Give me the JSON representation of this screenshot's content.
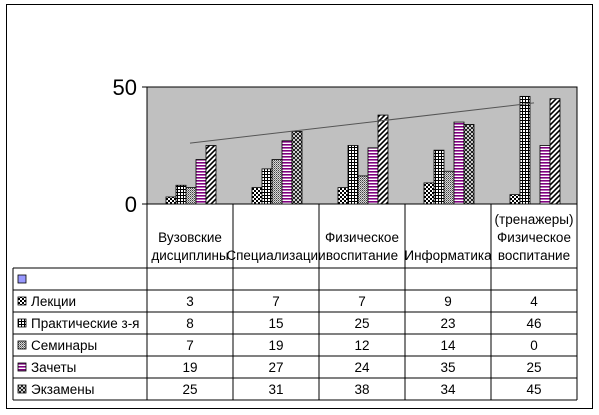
{
  "chart_data": {
    "type": "bar",
    "title": "",
    "xlabel": "",
    "ylabel": "",
    "ylim": [
      0,
      50
    ],
    "y_ticks": [
      "0",
      "50"
    ],
    "grid": false,
    "legend": "data-table",
    "plot_background": "#c0c0c0",
    "categories": [
      [
        "Вузовские",
        "дисциплины"
      ],
      [
        "Специализации"
      ],
      [
        "Физическое",
        "воспитание"
      ],
      [
        "Информатика"
      ],
      [
        "(тренажеры)",
        "Физическое",
        "воспитание"
      ]
    ],
    "blank_row_label": "",
    "series": [
      {
        "name": "",
        "values": [
          null,
          null,
          null,
          null,
          null
        ],
        "color": "#9999ff",
        "pattern": "solid"
      },
      {
        "name": "Лекции",
        "values": [
          3,
          7,
          7,
          9,
          4
        ],
        "color": "#000000",
        "pattern": "checker"
      },
      {
        "name": "Практические з-я",
        "values": [
          8,
          15,
          25,
          23,
          46
        ],
        "color": "#000000",
        "pattern": "grid"
      },
      {
        "name": "Семинары",
        "values": [
          7,
          19,
          12,
          14,
          0
        ],
        "color": "#404040",
        "pattern": "dots"
      },
      {
        "name": "Зачеты",
        "values": [
          19,
          27,
          24,
          35,
          25
        ],
        "color": "#800080",
        "pattern": "hstripe"
      },
      {
        "name": "Экзамены",
        "values": [
          25,
          31,
          38,
          34,
          45
        ],
        "color": "#000000",
        "pattern": "cross"
      }
    ],
    "table_values": [
      [
        "",
        "",
        "",
        "",
        ""
      ],
      [
        "3",
        "7",
        "7",
        "9",
        "4"
      ],
      [
        "8",
        "15",
        "25",
        "23",
        "46"
      ],
      [
        "7",
        "19",
        "12",
        "14",
        "0"
      ],
      [
        "19",
        "27",
        "24",
        "35",
        "25"
      ],
      [
        "25",
        "31",
        "38",
        "34",
        "45"
      ]
    ]
  }
}
